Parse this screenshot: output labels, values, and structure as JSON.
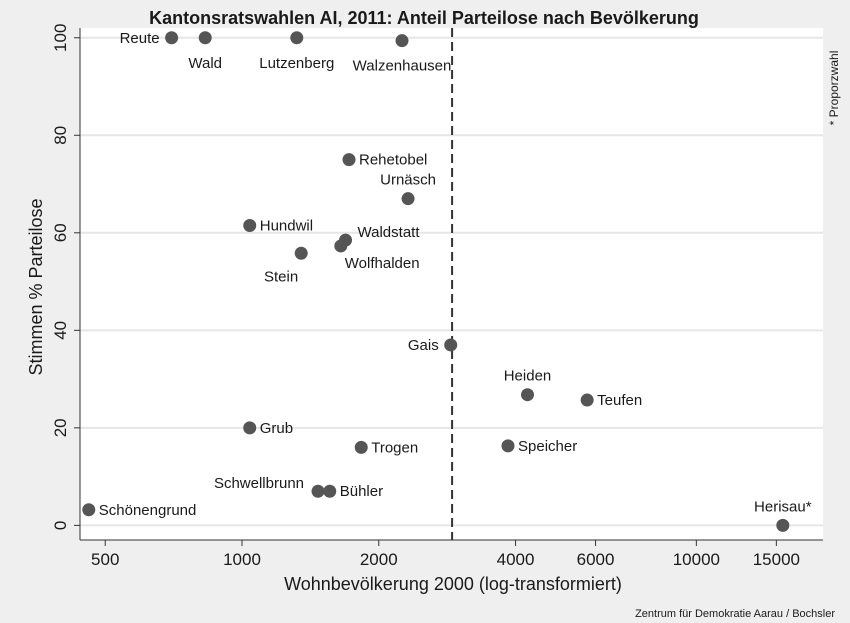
{
  "chart_data": {
    "type": "scatter",
    "title": "Kantonsratswahlen AI, 2011: Anteil Parteilose nach Bevölkerung",
    "xlabel": "Wohnbevölkerung 2000 (log-transformiert)",
    "ylabel": "Stimmen % Parteilose",
    "x_scale": "log",
    "x_ticks": [
      500,
      1000,
      2000,
      4000,
      6000,
      10000,
      15000
    ],
    "x_tick_labels": [
      "500",
      "1000",
      "2000",
      "4000",
      "6000",
      "10000",
      "15000"
    ],
    "xlim": [
      440,
      19000
    ],
    "y_ticks": [
      0,
      20,
      40,
      60,
      80,
      100
    ],
    "y_tick_labels": [
      "0",
      "20",
      "40",
      "60",
      "80",
      "100"
    ],
    "ylim": [
      -3,
      102
    ],
    "grid": true,
    "reference_line_x": 2900,
    "side_note": "* Proporzwahl",
    "credit": "Zentrum für Demokratie Aarau / Bochsler",
    "points": [
      {
        "label": "Reute",
        "x": 700,
        "y": 100,
        "pos": "left"
      },
      {
        "label": "Wald",
        "x": 830,
        "y": 100,
        "pos": "below"
      },
      {
        "label": "Lutzenberg",
        "x": 1320,
        "y": 100,
        "pos": "below"
      },
      {
        "label": "Walzenhausen",
        "x": 2250,
        "y": 99.4,
        "pos": "below"
      },
      {
        "label": "Rehetobel",
        "x": 1720,
        "y": 75,
        "pos": "right"
      },
      {
        "label": "Urnäsch",
        "x": 2320,
        "y": 67,
        "pos": "above"
      },
      {
        "label": "Hundwil",
        "x": 1040,
        "y": 61.5,
        "pos": "right"
      },
      {
        "label": "Waldstatt",
        "x": 1690,
        "y": 58.5,
        "pos": "aboveright"
      },
      {
        "label": "Wolfhalden",
        "x": 1650,
        "y": 57.3,
        "pos": "belowright"
      },
      {
        "label": "Stein",
        "x": 1350,
        "y": 55.8,
        "pos": "belowleft"
      },
      {
        "label": "Gais",
        "x": 2880,
        "y": 37,
        "pos": "left"
      },
      {
        "label": "Heiden",
        "x": 4250,
        "y": 26.8,
        "pos": "above"
      },
      {
        "label": "Teufen",
        "x": 5750,
        "y": 25.7,
        "pos": "right"
      },
      {
        "label": "Grub",
        "x": 1040,
        "y": 20,
        "pos": "right"
      },
      {
        "label": "Trogen",
        "x": 1830,
        "y": 16,
        "pos": "right"
      },
      {
        "label": "Speicher",
        "x": 3850,
        "y": 16.3,
        "pos": "right"
      },
      {
        "label": "Schwellbrunn",
        "x": 1470,
        "y": 7,
        "pos": "aboveleft"
      },
      {
        "label": "Bühler",
        "x": 1560,
        "y": 7,
        "pos": "right"
      },
      {
        "label": "Schönengrund",
        "x": 460,
        "y": 3.2,
        "pos": "right"
      },
      {
        "label": "Herisau*",
        "x": 15500,
        "y": 0,
        "pos": "above"
      }
    ]
  }
}
